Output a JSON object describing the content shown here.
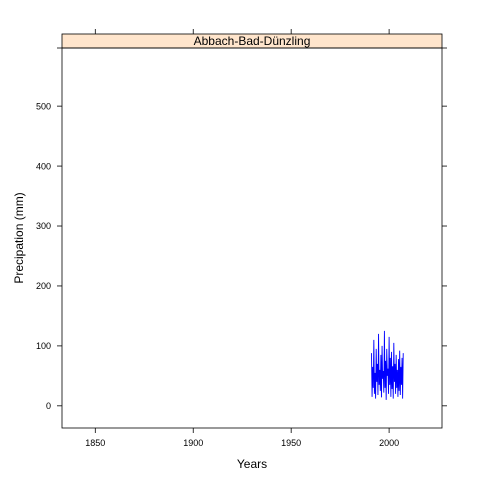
{
  "chart_data": {
    "type": "line",
    "title": "Abbach-Bad-Dünzling",
    "xlabel": "Years",
    "ylabel": "Precipation (mm)",
    "xlim": [
      1833,
      2027
    ],
    "ylim": [
      -37,
      597
    ],
    "x_ticks": [
      "1850",
      "1900",
      "1950",
      "2000"
    ],
    "x_tick_values": [
      1850,
      1900,
      1950,
      2000
    ],
    "y_ticks": [
      "0",
      "100",
      "200",
      "300",
      "400",
      "500"
    ],
    "y_tick_values": [
      0,
      100,
      200,
      300,
      400,
      500
    ],
    "grid": false,
    "strip_color": "#ffe5cc",
    "series": [
      {
        "color": "#0000ff",
        "x": [
          1991.0,
          1991.3,
          1991.6,
          1991.9,
          1992.2,
          1992.5,
          1992.8,
          1993.1,
          1993.4,
          1993.7,
          1994.0,
          1994.3,
          1994.6,
          1994.9,
          1995.2,
          1995.5,
          1995.8,
          1996.1,
          1996.4,
          1996.7,
          1997.0,
          1997.3,
          1997.6,
          1997.9,
          1998.2,
          1998.5,
          1998.8,
          1999.1,
          1999.4,
          1999.7,
          2000.0,
          2000.3,
          2000.6,
          2000.9,
          2001.2,
          2001.5,
          2001.8,
          2002.1,
          2002.4,
          2002.7,
          2003.0,
          2003.3,
          2003.6,
          2003.9,
          2004.2,
          2004.5,
          2004.8,
          2005.1,
          2005.4,
          2005.7,
          2006.0,
          2006.3,
          2006.6,
          2006.9,
          2007.2
        ],
        "y": [
          88,
          15,
          65,
          30,
          110,
          20,
          55,
          12,
          95,
          40,
          70,
          18,
          120,
          35,
          60,
          25,
          85,
          14,
          100,
          45,
          58,
          22,
          125,
          30,
          75,
          10,
          95,
          50,
          62,
          20,
          115,
          35,
          80,
          15,
          90,
          28,
          66,
          12,
          105,
          40,
          70,
          20,
          85,
          30,
          60,
          15,
          78,
          25,
          92,
          18,
          65,
          35,
          80,
          12,
          88
        ]
      }
    ]
  }
}
